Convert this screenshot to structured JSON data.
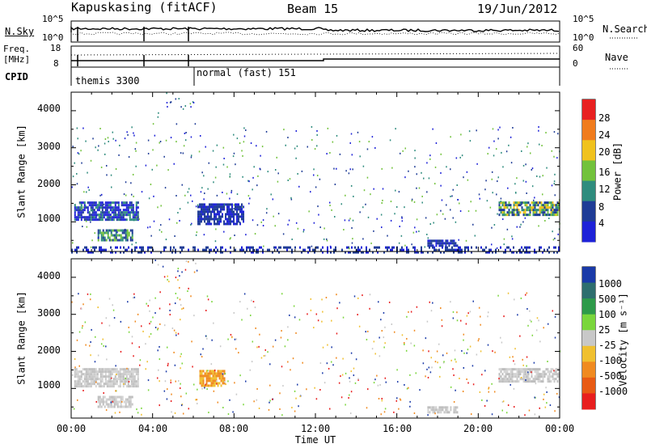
{
  "header": {
    "station": "Kapuskasing (fitACF)",
    "beam": "Beam 15",
    "date": "19/Jun/2012"
  },
  "noise_panel": {
    "left_label": "N.Sky",
    "left_ticks": [
      "10^5",
      "10^0"
    ],
    "right_ticks": [
      "10^5",
      "10^0"
    ],
    "right_label": "N.Search"
  },
  "freq_panel": {
    "left_label_1": "Freq.",
    "left_label_2": "[MHz]",
    "left_ticks": [
      "18",
      "8"
    ],
    "right_ticks": [
      "60",
      "0"
    ],
    "right_label": "Nave"
  },
  "cpid_panel": {
    "label": "CPID",
    "segments": [
      {
        "name": "themis 3300",
        "start_hour": 0
      },
      {
        "name": "normal (fast) 151",
        "start_hour": 6
      }
    ]
  },
  "chart_data": [
    {
      "type": "heatmap",
      "quantity": "power",
      "xlabel": "",
      "ylabel": "Slant Range [km]",
      "xlim_hours": [
        0,
        24
      ],
      "ylim": [
        200,
        4500
      ],
      "yticks": [
        "1000",
        "2000",
        "3000",
        "4000"
      ],
      "colorbar": {
        "label": "Power [dB]",
        "ticks": [
          "4",
          "8",
          "12",
          "16",
          "20",
          "24",
          "28"
        ],
        "colors": [
          "#1e22d8",
          "#1f3c96",
          "#2f8c7e",
          "#72c23c",
          "#f0c21e",
          "#f07c1e",
          "#e82020"
        ]
      },
      "regions": [
        {
          "t": [
            0.15,
            3.3
          ],
          "range": [
            1050,
            1550
          ],
          "level": "blue-green"
        },
        {
          "t": [
            1.3,
            3.0
          ],
          "range": [
            480,
            800
          ],
          "level": "green"
        },
        {
          "t": [
            6.2,
            8.5
          ],
          "range": [
            950,
            1500
          ],
          "level": "blue"
        },
        {
          "t": [
            21.0,
            24.0
          ],
          "range": [
            1200,
            1550
          ],
          "level": "green-yellow"
        },
        {
          "t": [
            17.5,
            19.0
          ],
          "range": [
            380,
            520
          ],
          "level": "blue"
        },
        {
          "t": [
            0.0,
            24.0
          ],
          "range": [
            200,
            340
          ],
          "level": "blue"
        }
      ]
    },
    {
      "type": "heatmap",
      "quantity": "velocity",
      "xlabel": "Time UT",
      "ylabel": "Slant Range [km]",
      "xlim_hours": [
        0,
        24
      ],
      "ylim": [
        200,
        4500
      ],
      "xticks": [
        "00:00",
        "04:00",
        "08:00",
        "12:00",
        "16:00",
        "20:00",
        "00:00"
      ],
      "yticks": [
        "1000",
        "2000",
        "3000",
        "4000"
      ],
      "colorbar": {
        "label": "Velocity [m s⁻¹]",
        "ticks": [
          "1000",
          "500",
          "100",
          "25",
          "-25",
          "-100",
          "-500",
          "-1000"
        ],
        "colors": [
          "#1a3aa8",
          "#2e6e6e",
          "#2e9a4a",
          "#7ad63c",
          "#c8c8c8",
          "#f0c030",
          "#f08a20",
          "#e85a14",
          "#e81e1e"
        ]
      },
      "regions": [
        {
          "t": [
            0.15,
            3.3
          ],
          "range": [
            1050,
            1550
          ],
          "level": "gray"
        },
        {
          "t": [
            1.3,
            3.0
          ],
          "range": [
            480,
            800
          ],
          "level": "gray"
        },
        {
          "t": [
            6.3,
            7.5
          ],
          "range": [
            1050,
            1500
          ],
          "level": "orange"
        },
        {
          "t": [
            21.0,
            24.0
          ],
          "range": [
            1200,
            1550
          ],
          "level": "gray"
        },
        {
          "t": [
            17.5,
            19.0
          ],
          "range": [
            380,
            520
          ],
          "level": "gray"
        }
      ]
    }
  ]
}
